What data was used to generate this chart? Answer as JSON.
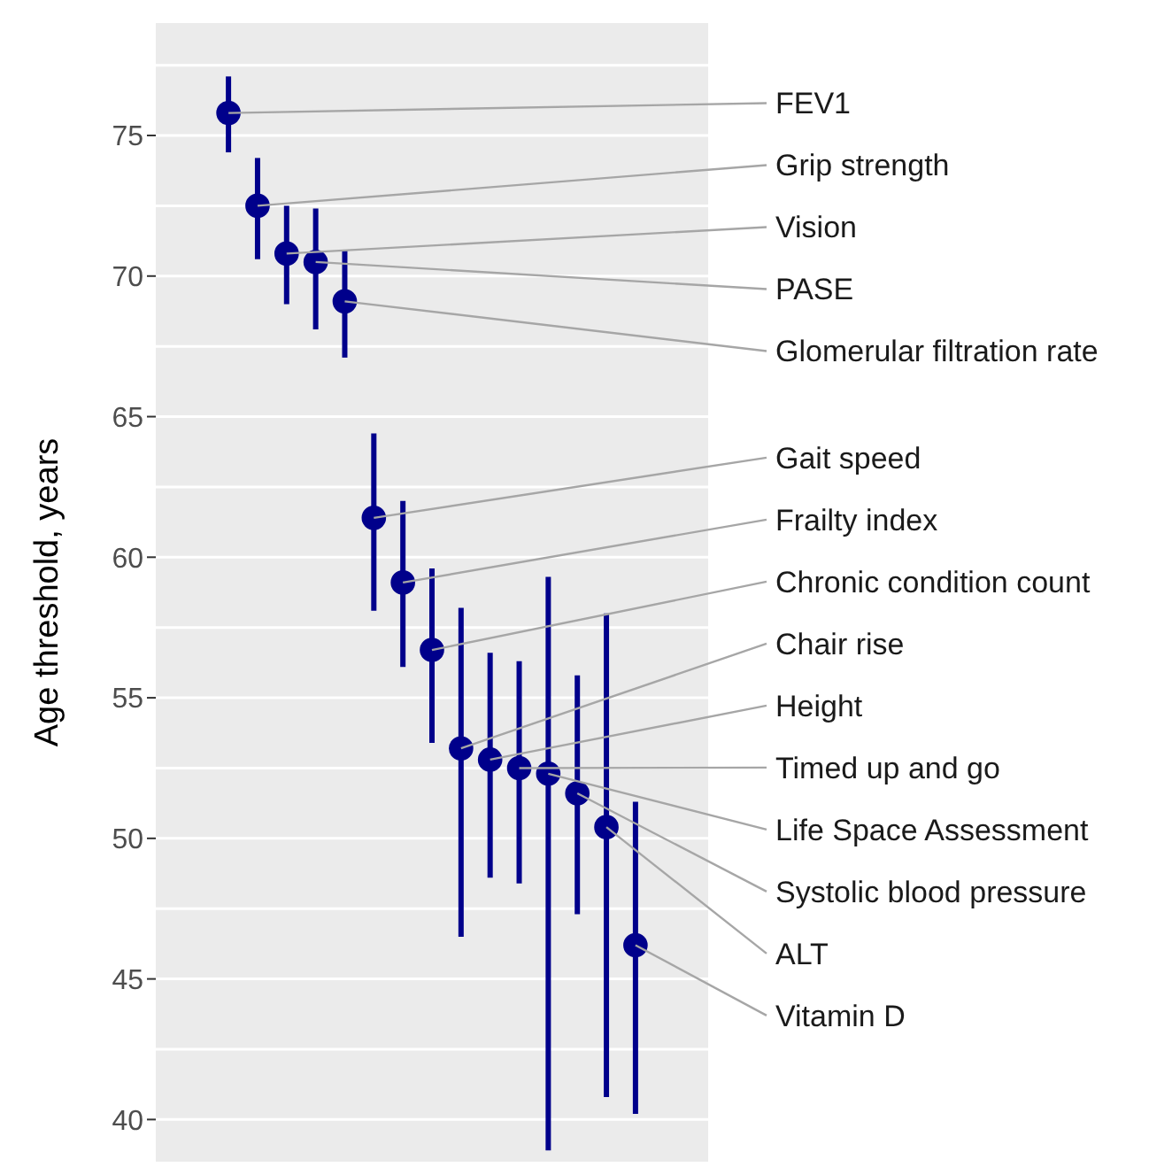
{
  "chart_data": {
    "type": "scatter",
    "ylabel": "Age threshold, years",
    "categories": [
      null,
      null,
      null,
      null,
      null,
      null,
      null,
      null,
      null,
      null,
      null,
      null,
      null,
      null,
      null,
      null,
      null,
      null,
      null
    ],
    "values": [
      null,
      null,
      75.8,
      72.5,
      70.8,
      70.5,
      69.1,
      61.4,
      59.1,
      56.7,
      53.2,
      52.8,
      52.5,
      52.3,
      51.6,
      50.4,
      46.2,
      null,
      null
    ],
    "errors": [
      null,
      null,
      [
        74.4,
        77.1
      ],
      [
        70.6,
        74.2
      ],
      [
        69.0,
        72.5
      ],
      [
        68.1,
        72.4
      ],
      [
        67.1,
        70.9
      ],
      [
        58.1,
        64.4
      ],
      [
        56.1,
        62.0
      ],
      [
        53.4,
        59.6
      ],
      [
        46.5,
        58.2
      ],
      [
        48.6,
        56.6
      ],
      [
        48.4,
        56.3
      ],
      [
        38.9,
        59.3
      ],
      [
        47.3,
        55.8
      ],
      [
        40.8,
        58.0
      ],
      [
        40.2,
        51.3
      ],
      null,
      null
    ],
    "annotations": [
      "FEV1",
      "Grip strength",
      "Vision",
      "PASE",
      "Glomerular filtration rate",
      "Gait speed",
      "Frailty index",
      "Chronic condition count",
      "Chair rise",
      "Height",
      "Timed up and go",
      "Life Space Assessment",
      "Systolic blood pressure",
      "ALT",
      "Vitamin D"
    ],
    "color": "#00008b",
    "marker": "circle",
    "ylim": [
      38.5,
      79
    ],
    "yticks": [
      40,
      45,
      50,
      55,
      60,
      65,
      70,
      75
    ],
    "grid": "y",
    "tick_labels": "y"
  }
}
